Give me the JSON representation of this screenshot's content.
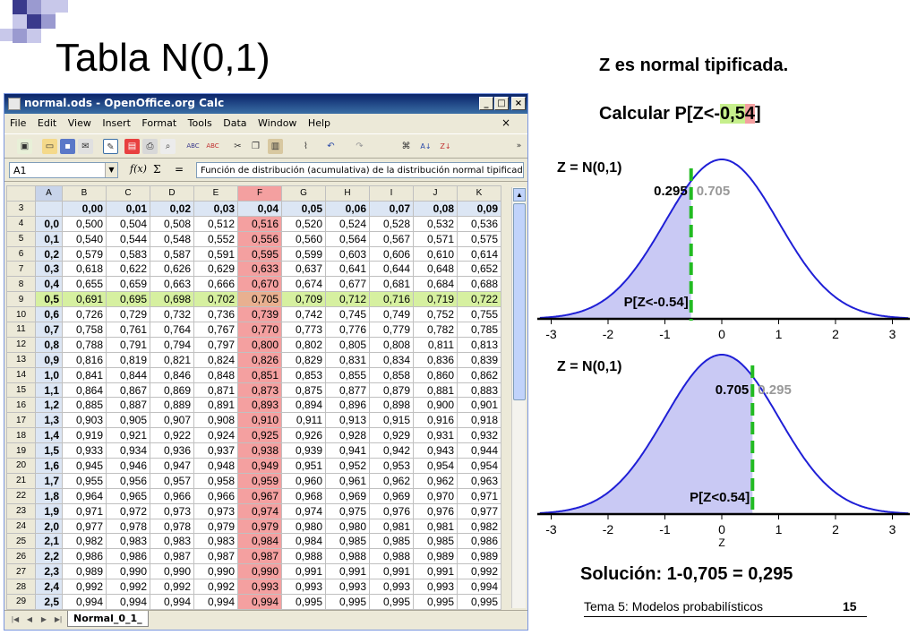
{
  "slide": {
    "title": "Tabla N(0,1)",
    "subtitle": "Z es normal tipificada.",
    "question_prefix": "Calcular P[Z<-",
    "question_value_a": "0,5",
    "question_value_b": "4",
    "question_suffix": "]",
    "solution": "Solución: 1-0,705 = 0,295",
    "footer": "Tema 5: Modelos probabilísticos",
    "page_number": "15",
    "colors": {
      "accent_blue": "#3a3a8c",
      "highlight_green": "#c6ef8c",
      "highlight_red": "#f4a0a0",
      "curve_blue": "#1f1fd6",
      "fill_lavender": "#c9c9f4",
      "dashed_green": "#22bb22"
    }
  },
  "window": {
    "title": "normal.ods - OpenOffice.org Calc",
    "menu": [
      "File",
      "Edit",
      "View",
      "Insert",
      "Format",
      "Tools",
      "Data",
      "Window",
      "Help"
    ],
    "name_box": "A1",
    "fx_label": "f(x)",
    "sigma_label": "Σ",
    "equals_label": "=",
    "formula": "Función de distribución (acumulativa) de la distribución normal tipificada.",
    "sheet_tab": "Normal_0_1_",
    "toolbar_icons": [
      "new-icon",
      "open-icon",
      "save-icon",
      "mail-icon",
      "edit-icon",
      "pdf-icon",
      "print-icon",
      "preview-icon",
      "spellcheck-icon",
      "autospell-icon",
      "cut-icon",
      "copy-icon",
      "paste-icon",
      "format-paintbrush-icon",
      "undo-icon",
      "redo-icon",
      "navigator-icon",
      "sort-asc-icon",
      "sort-desc-icon"
    ]
  },
  "grid": {
    "columns": [
      "A",
      "B",
      "C",
      "D",
      "E",
      "F",
      "G",
      "H",
      "I",
      "J",
      "K"
    ],
    "header_row": {
      "row": "3",
      "cells": [
        "",
        "0,00",
        "0,01",
        "0,02",
        "0,03",
        "0,04",
        "0,05",
        "0,06",
        "0,07",
        "0,08",
        "0,09"
      ]
    },
    "rows": [
      {
        "row": "4",
        "cells": [
          "0,0",
          "0,500",
          "0,504",
          "0,508",
          "0,512",
          "0,516",
          "0,520",
          "0,524",
          "0,528",
          "0,532",
          "0,536"
        ]
      },
      {
        "row": "5",
        "cells": [
          "0,1",
          "0,540",
          "0,544",
          "0,548",
          "0,552",
          "0,556",
          "0,560",
          "0,564",
          "0,567",
          "0,571",
          "0,575"
        ]
      },
      {
        "row": "6",
        "cells": [
          "0,2",
          "0,579",
          "0,583",
          "0,587",
          "0,591",
          "0,595",
          "0,599",
          "0,603",
          "0,606",
          "0,610",
          "0,614"
        ]
      },
      {
        "row": "7",
        "cells": [
          "0,3",
          "0,618",
          "0,622",
          "0,626",
          "0,629",
          "0,633",
          "0,637",
          "0,641",
          "0,644",
          "0,648",
          "0,652"
        ]
      },
      {
        "row": "8",
        "cells": [
          "0,4",
          "0,655",
          "0,659",
          "0,663",
          "0,666",
          "0,670",
          "0,674",
          "0,677",
          "0,681",
          "0,684",
          "0,688"
        ]
      },
      {
        "row": "9",
        "cells": [
          "0,5",
          "0,691",
          "0,695",
          "0,698",
          "0,702",
          "0,705",
          "0,709",
          "0,712",
          "0,716",
          "0,719",
          "0,722"
        ]
      },
      {
        "row": "10",
        "cells": [
          "0,6",
          "0,726",
          "0,729",
          "0,732",
          "0,736",
          "0,739",
          "0,742",
          "0,745",
          "0,749",
          "0,752",
          "0,755"
        ]
      },
      {
        "row": "11",
        "cells": [
          "0,7",
          "0,758",
          "0,761",
          "0,764",
          "0,767",
          "0,770",
          "0,773",
          "0,776",
          "0,779",
          "0,782",
          "0,785"
        ]
      },
      {
        "row": "12",
        "cells": [
          "0,8",
          "0,788",
          "0,791",
          "0,794",
          "0,797",
          "0,800",
          "0,802",
          "0,805",
          "0,808",
          "0,811",
          "0,813"
        ]
      },
      {
        "row": "13",
        "cells": [
          "0,9",
          "0,816",
          "0,819",
          "0,821",
          "0,824",
          "0,826",
          "0,829",
          "0,831",
          "0,834",
          "0,836",
          "0,839"
        ]
      },
      {
        "row": "14",
        "cells": [
          "1,0",
          "0,841",
          "0,844",
          "0,846",
          "0,848",
          "0,851",
          "0,853",
          "0,855",
          "0,858",
          "0,860",
          "0,862"
        ]
      },
      {
        "row": "15",
        "cells": [
          "1,1",
          "0,864",
          "0,867",
          "0,869",
          "0,871",
          "0,873",
          "0,875",
          "0,877",
          "0,879",
          "0,881",
          "0,883"
        ]
      },
      {
        "row": "16",
        "cells": [
          "1,2",
          "0,885",
          "0,887",
          "0,889",
          "0,891",
          "0,893",
          "0,894",
          "0,896",
          "0,898",
          "0,900",
          "0,901"
        ]
      },
      {
        "row": "17",
        "cells": [
          "1,3",
          "0,903",
          "0,905",
          "0,907",
          "0,908",
          "0,910",
          "0,911",
          "0,913",
          "0,915",
          "0,916",
          "0,918"
        ]
      },
      {
        "row": "18",
        "cells": [
          "1,4",
          "0,919",
          "0,921",
          "0,922",
          "0,924",
          "0,925",
          "0,926",
          "0,928",
          "0,929",
          "0,931",
          "0,932"
        ]
      },
      {
        "row": "19",
        "cells": [
          "1,5",
          "0,933",
          "0,934",
          "0,936",
          "0,937",
          "0,938",
          "0,939",
          "0,941",
          "0,942",
          "0,943",
          "0,944"
        ]
      },
      {
        "row": "20",
        "cells": [
          "1,6",
          "0,945",
          "0,946",
          "0,947",
          "0,948",
          "0,949",
          "0,951",
          "0,952",
          "0,953",
          "0,954",
          "0,954"
        ]
      },
      {
        "row": "21",
        "cells": [
          "1,7",
          "0,955",
          "0,956",
          "0,957",
          "0,958",
          "0,959",
          "0,960",
          "0,961",
          "0,962",
          "0,962",
          "0,963"
        ]
      },
      {
        "row": "22",
        "cells": [
          "1,8",
          "0,964",
          "0,965",
          "0,966",
          "0,966",
          "0,967",
          "0,968",
          "0,969",
          "0,969",
          "0,970",
          "0,971"
        ]
      },
      {
        "row": "23",
        "cells": [
          "1,9",
          "0,971",
          "0,972",
          "0,973",
          "0,973",
          "0,974",
          "0,974",
          "0,975",
          "0,976",
          "0,976",
          "0,977"
        ]
      },
      {
        "row": "24",
        "cells": [
          "2,0",
          "0,977",
          "0,978",
          "0,978",
          "0,979",
          "0,979",
          "0,980",
          "0,980",
          "0,981",
          "0,981",
          "0,982"
        ]
      },
      {
        "row": "25",
        "cells": [
          "2,1",
          "0,982",
          "0,983",
          "0,983",
          "0,983",
          "0,984",
          "0,984",
          "0,985",
          "0,985",
          "0,985",
          "0,986"
        ]
      },
      {
        "row": "26",
        "cells": [
          "2,2",
          "0,986",
          "0,986",
          "0,987",
          "0,987",
          "0,987",
          "0,988",
          "0,988",
          "0,988",
          "0,989",
          "0,989"
        ]
      },
      {
        "row": "27",
        "cells": [
          "2,3",
          "0,989",
          "0,990",
          "0,990",
          "0,990",
          "0,990",
          "0,991",
          "0,991",
          "0,991",
          "0,991",
          "0,992"
        ]
      },
      {
        "row": "28",
        "cells": [
          "2,4",
          "0,992",
          "0,992",
          "0,992",
          "0,992",
          "0,993",
          "0,993",
          "0,993",
          "0,993",
          "0,993",
          "0,994"
        ]
      },
      {
        "row": "29",
        "cells": [
          "2,5",
          "0,994",
          "0,994",
          "0,994",
          "0,994",
          "0,994",
          "0,995",
          "0,995",
          "0,995",
          "0,995",
          "0,995"
        ]
      }
    ],
    "highlight_row": "9",
    "highlight_column": "F"
  },
  "plots": [
    {
      "label": "Z = N(0,1)",
      "cut": -0.54,
      "left_value": "0.295",
      "right_value": "0.705",
      "area_label": "P[Z<-0.54]",
      "x_ticks": [
        "-3",
        "-2",
        "-1",
        "0",
        "1",
        "2",
        "3"
      ],
      "xlabel": ""
    },
    {
      "label": "Z = N(0,1)",
      "cut": 0.54,
      "left_value": "0.705",
      "right_value": "0.295",
      "area_label": "P[Z<0.54]",
      "x_ticks": [
        "-3",
        "-2",
        "-1",
        "0",
        "1",
        "2",
        "3"
      ],
      "xlabel": "Z"
    }
  ]
}
